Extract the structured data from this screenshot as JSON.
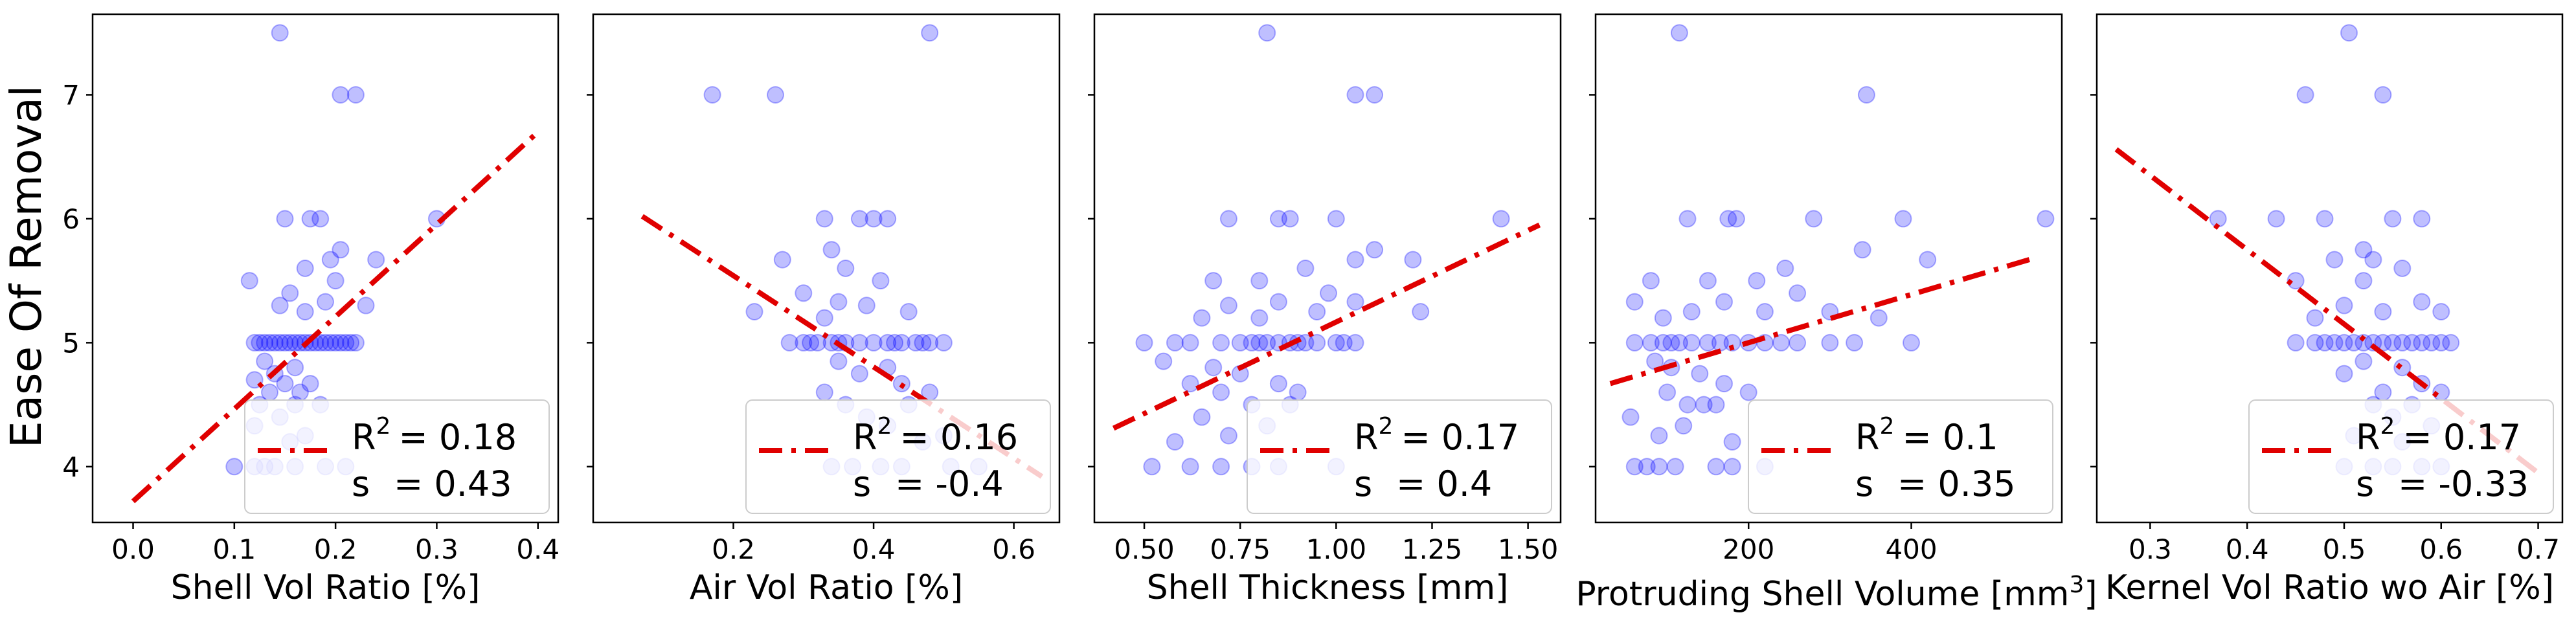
{
  "figure": {
    "ylabel": "Ease Of Removal"
  },
  "chart_data": [
    {
      "type": "scatter",
      "xlabel": "Shell Vol Ratio [%]",
      "xlim": [
        -0.04,
        0.42
      ],
      "ylim": [
        3.55,
        7.65
      ],
      "xticks": [
        "0.0",
        "0.1",
        "0.2",
        "0.3",
        "0.4"
      ],
      "xtick_values": [
        0.0,
        0.1,
        0.2,
        0.3,
        0.4
      ],
      "yticks": [
        "4",
        "5",
        "6",
        "7"
      ],
      "ytick_values": [
        4,
        5,
        6,
        7
      ],
      "point_color": "#0000ff",
      "line_color": "#e00000",
      "fit": {
        "x": [
          0.0,
          0.4
        ],
        "y": [
          3.72,
          6.7
        ]
      },
      "legend": {
        "r2_prefix": "R",
        "r2_sup": "2",
        "r2_value": "= 0.18",
        "s_label": "s",
        "s_value": "= 0.43",
        "loc": "lower-right"
      },
      "points": [
        [
          0.145,
          7.5
        ],
        [
          0.205,
          7.0
        ],
        [
          0.22,
          7.0
        ],
        [
          0.15,
          6.0
        ],
        [
          0.175,
          6.0
        ],
        [
          0.185,
          6.0
        ],
        [
          0.3,
          6.0
        ],
        [
          0.205,
          5.75
        ],
        [
          0.24,
          5.67
        ],
        [
          0.195,
          5.67
        ],
        [
          0.115,
          5.5
        ],
        [
          0.17,
          5.6
        ],
        [
          0.2,
          5.5
        ],
        [
          0.155,
          5.4
        ],
        [
          0.145,
          5.3
        ],
        [
          0.19,
          5.33
        ],
        [
          0.23,
          5.3
        ],
        [
          0.17,
          5.25
        ],
        [
          0.12,
          5.0
        ],
        [
          0.125,
          5.0
        ],
        [
          0.13,
          5.0
        ],
        [
          0.135,
          5.0
        ],
        [
          0.14,
          5.0
        ],
        [
          0.145,
          5.0
        ],
        [
          0.15,
          5.0
        ],
        [
          0.155,
          5.0
        ],
        [
          0.16,
          5.0
        ],
        [
          0.165,
          5.0
        ],
        [
          0.17,
          5.0
        ],
        [
          0.175,
          5.0
        ],
        [
          0.18,
          5.0
        ],
        [
          0.185,
          5.0
        ],
        [
          0.19,
          5.0
        ],
        [
          0.195,
          5.0
        ],
        [
          0.2,
          5.0
        ],
        [
          0.205,
          5.0
        ],
        [
          0.21,
          5.0
        ],
        [
          0.215,
          5.0
        ],
        [
          0.22,
          5.0
        ],
        [
          0.13,
          4.85
        ],
        [
          0.16,
          4.8
        ],
        [
          0.14,
          4.75
        ],
        [
          0.12,
          4.7
        ],
        [
          0.15,
          4.67
        ],
        [
          0.175,
          4.67
        ],
        [
          0.135,
          4.6
        ],
        [
          0.165,
          4.6
        ],
        [
          0.125,
          4.5
        ],
        [
          0.16,
          4.5
        ],
        [
          0.185,
          4.5
        ],
        [
          0.145,
          4.4
        ],
        [
          0.12,
          4.33
        ],
        [
          0.17,
          4.25
        ],
        [
          0.155,
          4.2
        ],
        [
          0.1,
          4.0
        ],
        [
          0.12,
          4.0
        ],
        [
          0.14,
          4.0
        ],
        [
          0.16,
          4.0
        ],
        [
          0.19,
          4.0
        ],
        [
          0.21,
          4.0
        ],
        [
          0.13,
          4.0
        ]
      ]
    },
    {
      "type": "scatter",
      "xlabel": "Air Vol Ratio [%]",
      "xlim": [
        0.0,
        0.665
      ],
      "ylim": [
        3.55,
        7.65
      ],
      "xticks": [
        "0.2",
        "0.4",
        "0.6"
      ],
      "xtick_values": [
        0.2,
        0.4,
        0.6
      ],
      "yticks": [
        "4",
        "5",
        "6",
        "7"
      ],
      "ytick_values": [
        4,
        5,
        6,
        7
      ],
      "point_color": "#0000ff",
      "line_color": "#e00000",
      "fit": {
        "x": [
          0.07,
          0.64
        ],
        "y": [
          6.02,
          3.92
        ]
      },
      "legend": {
        "r2_prefix": "R",
        "r2_sup": "2",
        "r2_value": "= 0.16",
        "s_label": "s",
        "s_value": "= -0.4",
        "loc": "lower-right"
      },
      "points": [
        [
          0.48,
          7.5
        ],
        [
          0.17,
          7.0
        ],
        [
          0.26,
          7.0
        ],
        [
          0.33,
          6.0
        ],
        [
          0.4,
          6.0
        ],
        [
          0.42,
          6.0
        ],
        [
          0.38,
          6.0
        ],
        [
          0.34,
          5.75
        ],
        [
          0.27,
          5.67
        ],
        [
          0.36,
          5.6
        ],
        [
          0.41,
          5.5
        ],
        [
          0.3,
          5.4
        ],
        [
          0.35,
          5.33
        ],
        [
          0.39,
          5.3
        ],
        [
          0.23,
          5.25
        ],
        [
          0.45,
          5.25
        ],
        [
          0.33,
          5.2
        ],
        [
          0.28,
          5.0
        ],
        [
          0.3,
          5.0
        ],
        [
          0.32,
          5.0
        ],
        [
          0.34,
          5.0
        ],
        [
          0.36,
          5.0
        ],
        [
          0.38,
          5.0
        ],
        [
          0.4,
          5.0
        ],
        [
          0.42,
          5.0
        ],
        [
          0.44,
          5.0
        ],
        [
          0.46,
          5.0
        ],
        [
          0.48,
          5.0
        ],
        [
          0.5,
          5.0
        ],
        [
          0.31,
          5.0
        ],
        [
          0.35,
          5.0
        ],
        [
          0.43,
          5.0
        ],
        [
          0.47,
          5.0
        ],
        [
          0.35,
          4.85
        ],
        [
          0.42,
          4.8
        ],
        [
          0.38,
          4.75
        ],
        [
          0.44,
          4.67
        ],
        [
          0.33,
          4.6
        ],
        [
          0.48,
          4.6
        ],
        [
          0.36,
          4.5
        ],
        [
          0.45,
          4.5
        ],
        [
          0.39,
          4.4
        ],
        [
          0.42,
          4.33
        ],
        [
          0.5,
          4.25
        ],
        [
          0.47,
          4.2
        ],
        [
          0.34,
          4.0
        ],
        [
          0.37,
          4.0
        ],
        [
          0.41,
          4.0
        ],
        [
          0.44,
          4.0
        ],
        [
          0.51,
          4.0
        ],
        [
          0.55,
          4.0
        ]
      ]
    },
    {
      "type": "scatter",
      "xlabel": "Shell Thickness [mm]",
      "xlim": [
        0.37,
        1.585
      ],
      "ylim": [
        3.55,
        7.65
      ],
      "xticks": [
        "0.50",
        "0.75",
        "1.00",
        "1.25",
        "1.50"
      ],
      "xtick_values": [
        0.5,
        0.75,
        1.0,
        1.25,
        1.5
      ],
      "yticks": [
        "4",
        "5",
        "6",
        "7"
      ],
      "ytick_values": [
        4,
        5,
        6,
        7
      ],
      "point_color": "#0000ff",
      "line_color": "#e00000",
      "fit": {
        "x": [
          0.42,
          1.53
        ],
        "y": [
          4.31,
          5.95
        ]
      },
      "legend": {
        "r2_prefix": "R",
        "r2_sup": "2",
        "r2_value": "= 0.17",
        "s_label": "s",
        "s_value": "= 0.4",
        "loc": "lower-right"
      },
      "points": [
        [
          0.82,
          7.5
        ],
        [
          1.05,
          7.0
        ],
        [
          1.1,
          7.0
        ],
        [
          0.72,
          6.0
        ],
        [
          0.85,
          6.0
        ],
        [
          0.88,
          6.0
        ],
        [
          1.0,
          6.0
        ],
        [
          1.43,
          6.0
        ],
        [
          1.1,
          5.75
        ],
        [
          1.05,
          5.67
        ],
        [
          1.2,
          5.67
        ],
        [
          0.92,
          5.6
        ],
        [
          0.68,
          5.5
        ],
        [
          0.8,
          5.5
        ],
        [
          0.98,
          5.4
        ],
        [
          0.85,
          5.33
        ],
        [
          1.05,
          5.33
        ],
        [
          0.72,
          5.3
        ],
        [
          0.95,
          5.25
        ],
        [
          1.22,
          5.25
        ],
        [
          0.65,
          5.2
        ],
        [
          0.8,
          5.2
        ],
        [
          0.5,
          5.0
        ],
        [
          0.58,
          5.0
        ],
        [
          0.62,
          5.0
        ],
        [
          0.7,
          5.0
        ],
        [
          0.75,
          5.0
        ],
        [
          0.78,
          5.0
        ],
        [
          0.8,
          5.0
        ],
        [
          0.82,
          5.0
        ],
        [
          0.85,
          5.0
        ],
        [
          0.88,
          5.0
        ],
        [
          0.9,
          5.0
        ],
        [
          0.92,
          5.0
        ],
        [
          0.95,
          5.0
        ],
        [
          1.0,
          5.0
        ],
        [
          1.02,
          5.0
        ],
        [
          1.05,
          5.0
        ],
        [
          0.55,
          4.85
        ],
        [
          0.68,
          4.8
        ],
        [
          0.75,
          4.75
        ],
        [
          0.62,
          4.67
        ],
        [
          0.85,
          4.67
        ],
        [
          0.7,
          4.6
        ],
        [
          0.9,
          4.6
        ],
        [
          0.78,
          4.5
        ],
        [
          0.88,
          4.5
        ],
        [
          0.65,
          4.4
        ],
        [
          0.82,
          4.33
        ],
        [
          0.72,
          4.25
        ],
        [
          0.58,
          4.2
        ],
        [
          0.52,
          4.0
        ],
        [
          0.62,
          4.0
        ],
        [
          0.7,
          4.0
        ],
        [
          0.78,
          4.0
        ],
        [
          0.85,
          4.0
        ],
        [
          1.0,
          4.0
        ]
      ]
    },
    {
      "type": "scatter",
      "xlabel_main": "Protruding Shell Volume [mm",
      "xlabel_sup": "3",
      "xlabel_end": "]",
      "xlim": [
        12,
        585
      ],
      "ylim": [
        3.55,
        7.65
      ],
      "xticks": [
        "200",
        "400"
      ],
      "xtick_values": [
        200,
        400
      ],
      "yticks": [
        "4",
        "5",
        "6",
        "7"
      ],
      "ytick_values": [
        4,
        5,
        6,
        7
      ],
      "point_color": "#0000ff",
      "line_color": "#e00000",
      "fit": {
        "x": [
          30,
          550
        ],
        "y": [
          4.67,
          5.68
        ]
      },
      "legend": {
        "r2_prefix": "R",
        "r2_sup": "2",
        "r2_value": "= 0.1",
        "s_label": "s",
        "s_value": "= 0.35",
        "loc": "lower-right"
      },
      "points": [
        [
          115,
          7.5
        ],
        [
          345,
          7.0
        ],
        [
          125,
          6.0
        ],
        [
          175,
          6.0
        ],
        [
          185,
          6.0
        ],
        [
          280,
          6.0
        ],
        [
          390,
          6.0
        ],
        [
          565,
          6.0
        ],
        [
          340,
          5.75
        ],
        [
          420,
          5.67
        ],
        [
          245,
          5.6
        ],
        [
          80,
          5.5
        ],
        [
          150,
          5.5
        ],
        [
          210,
          5.5
        ],
        [
          60,
          5.33
        ],
        [
          130,
          5.25
        ],
        [
          170,
          5.33
        ],
        [
          220,
          5.25
        ],
        [
          260,
          5.4
        ],
        [
          300,
          5.25
        ],
        [
          360,
          5.2
        ],
        [
          95,
          5.2
        ],
        [
          60,
          5.0
        ],
        [
          80,
          5.0
        ],
        [
          95,
          5.0
        ],
        [
          105,
          5.0
        ],
        [
          115,
          5.0
        ],
        [
          130,
          5.0
        ],
        [
          150,
          5.0
        ],
        [
          165,
          5.0
        ],
        [
          180,
          5.0
        ],
        [
          200,
          5.0
        ],
        [
          220,
          5.0
        ],
        [
          240,
          5.0
        ],
        [
          260,
          5.0
        ],
        [
          300,
          5.0
        ],
        [
          330,
          5.0
        ],
        [
          400,
          5.0
        ],
        [
          85,
          4.85
        ],
        [
          105,
          4.8
        ],
        [
          140,
          4.75
        ],
        [
          170,
          4.67
        ],
        [
          100,
          4.6
        ],
        [
          200,
          4.6
        ],
        [
          125,
          4.5
        ],
        [
          145,
          4.5
        ],
        [
          160,
          4.5
        ],
        [
          55,
          4.4
        ],
        [
          120,
          4.33
        ],
        [
          90,
          4.25
        ],
        [
          180,
          4.2
        ],
        [
          60,
          4.0
        ],
        [
          75,
          4.0
        ],
        [
          90,
          4.0
        ],
        [
          110,
          4.0
        ],
        [
          160,
          4.0
        ],
        [
          180,
          4.0
        ],
        [
          220,
          4.0
        ]
      ]
    },
    {
      "type": "scatter",
      "xlabel": "Kernel Vol Ratio wo Air [%]",
      "xlim": [
        0.245,
        0.725
      ],
      "ylim": [
        3.55,
        7.65
      ],
      "xticks": [
        "0.3",
        "0.4",
        "0.5",
        "0.6",
        "0.7"
      ],
      "xtick_values": [
        0.3,
        0.4,
        0.5,
        0.6,
        0.7
      ],
      "yticks": [
        "4",
        "5",
        "6",
        "7"
      ],
      "ytick_values": [
        4,
        5,
        6,
        7
      ],
      "point_color": "#0000ff",
      "line_color": "#e00000",
      "fit": {
        "x": [
          0.265,
          0.705
        ],
        "y": [
          6.56,
          3.92
        ]
      },
      "legend": {
        "r2_prefix": "R",
        "r2_sup": "2",
        "r2_value": "= 0.17",
        "s_label": "s",
        "s_value": "= -0.33",
        "loc": "lower-right"
      },
      "points": [
        [
          0.505,
          7.5
        ],
        [
          0.46,
          7.0
        ],
        [
          0.54,
          7.0
        ],
        [
          0.37,
          6.0
        ],
        [
          0.43,
          6.0
        ],
        [
          0.48,
          6.0
        ],
        [
          0.55,
          6.0
        ],
        [
          0.58,
          6.0
        ],
        [
          0.52,
          5.75
        ],
        [
          0.53,
          5.67
        ],
        [
          0.49,
          5.67
        ],
        [
          0.56,
          5.6
        ],
        [
          0.45,
          5.5
        ],
        [
          0.52,
          5.5
        ],
        [
          0.58,
          5.33
        ],
        [
          0.5,
          5.3
        ],
        [
          0.54,
          5.25
        ],
        [
          0.6,
          5.25
        ],
        [
          0.47,
          5.2
        ],
        [
          0.45,
          5.0
        ],
        [
          0.47,
          5.0
        ],
        [
          0.49,
          5.0
        ],
        [
          0.5,
          5.0
        ],
        [
          0.51,
          5.0
        ],
        [
          0.52,
          5.0
        ],
        [
          0.53,
          5.0
        ],
        [
          0.54,
          5.0
        ],
        [
          0.55,
          5.0
        ],
        [
          0.56,
          5.0
        ],
        [
          0.57,
          5.0
        ],
        [
          0.58,
          5.0
        ],
        [
          0.59,
          5.0
        ],
        [
          0.6,
          5.0
        ],
        [
          0.61,
          5.0
        ],
        [
          0.48,
          5.0
        ],
        [
          0.52,
          4.85
        ],
        [
          0.56,
          4.8
        ],
        [
          0.5,
          4.75
        ],
        [
          0.58,
          4.67
        ],
        [
          0.54,
          4.6
        ],
        [
          0.6,
          4.6
        ],
        [
          0.53,
          4.5
        ],
        [
          0.57,
          4.5
        ],
        [
          0.55,
          4.4
        ],
        [
          0.59,
          4.33
        ],
        [
          0.51,
          4.25
        ],
        [
          0.56,
          4.2
        ],
        [
          0.5,
          4.0
        ],
        [
          0.53,
          4.0
        ],
        [
          0.55,
          4.0
        ],
        [
          0.58,
          4.0
        ],
        [
          0.6,
          4.0
        ]
      ]
    }
  ]
}
